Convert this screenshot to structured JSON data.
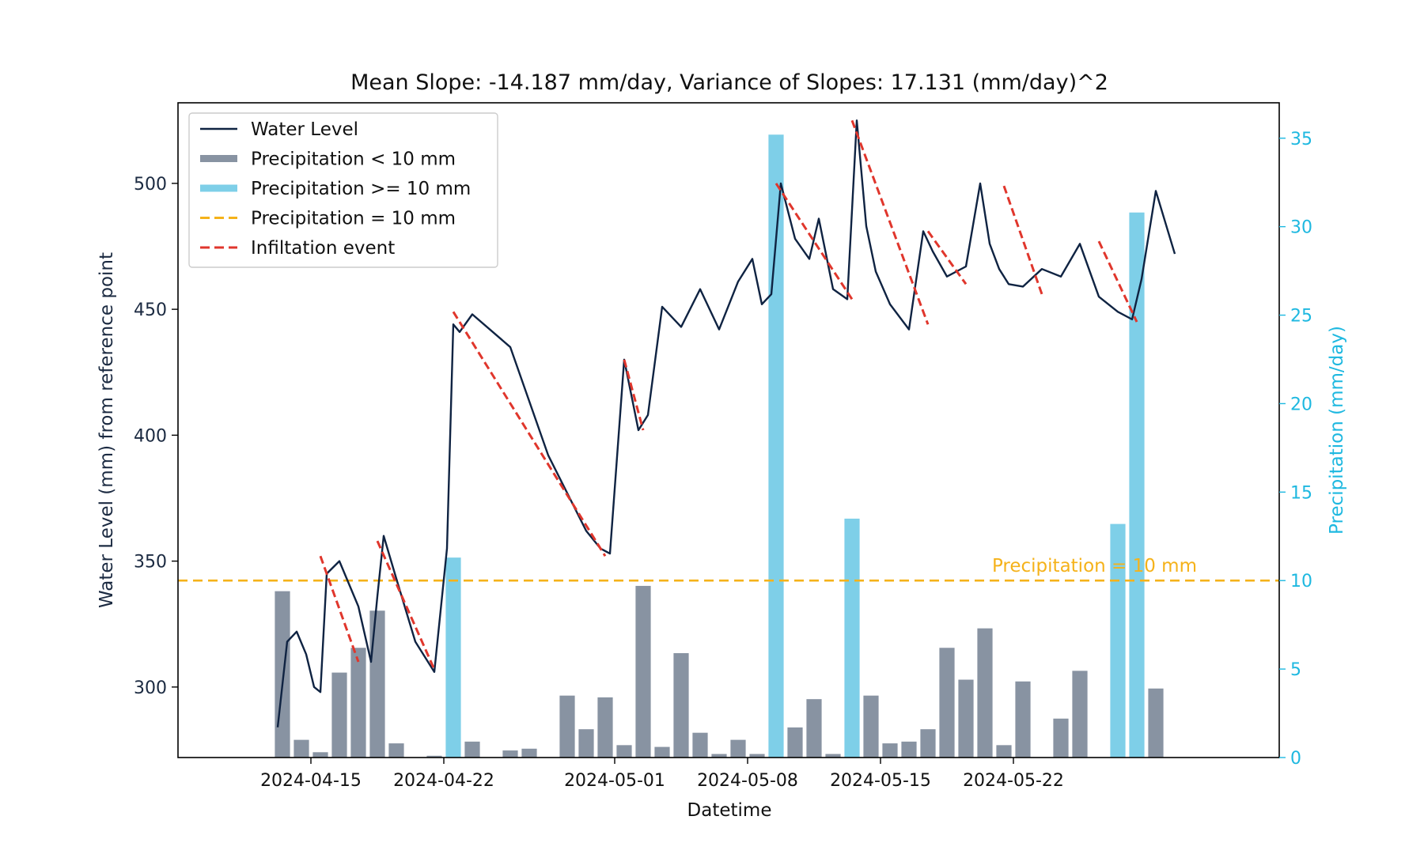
{
  "chart_data": {
    "type": "line",
    "title": "Mean Slope: -14.187 mm/day, Variance of Slopes: 17.131 (mm/day)^2",
    "xlabel": "Datetime",
    "ylabel": "Water Level (mm) from reference point",
    "y2label": "Precipitation (mm/day)",
    "x_range": [
      "2024-04-08",
      "2024-06-05"
    ],
    "ylim": [
      272,
      532
    ],
    "y2lim": [
      0,
      37
    ],
    "x_ticks": [
      "2024-04-15",
      "2024-04-22",
      "2024-05-01",
      "2024-05-08",
      "2024-05-15",
      "2024-05-22"
    ],
    "y_ticks": [
      300,
      350,
      400,
      450,
      500
    ],
    "y2_ticks": [
      0,
      5,
      10,
      15,
      20,
      25,
      30,
      35
    ],
    "grid": false,
    "legend_position": "upper-left",
    "threshold": {
      "value": 10,
      "label": "Precipitation = 10 mm"
    },
    "colors": {
      "water_level": "#0f2342",
      "precip_low": "#8893a2",
      "precip_high": "#7ecfe8",
      "threshold": "#f5b21a",
      "infiltration": "#e0362c",
      "right_axis": "#1eb8e0"
    },
    "legend": [
      {
        "label": "Water Level",
        "style": "line",
        "color": "#0f2342"
      },
      {
        "label": "Precipitation < 10 mm",
        "style": "thick",
        "color": "#8893a2"
      },
      {
        "label": "Precipitation >= 10 mm",
        "style": "thick",
        "color": "#7ecfe8"
      },
      {
        "label": "Precipitation = 10 mm",
        "style": "dashed",
        "color": "#f5b21a"
      },
      {
        "label": "Infiltation event",
        "style": "dashed",
        "color": "#e0362c"
      }
    ],
    "precipitation": {
      "dates": [
        "2024-04-13",
        "2024-04-14",
        "2024-04-15",
        "2024-04-16",
        "2024-04-17",
        "2024-04-18",
        "2024-04-19",
        "2024-04-21",
        "2024-04-22",
        "2024-04-23",
        "2024-04-25",
        "2024-04-26",
        "2024-04-28",
        "2024-04-29",
        "2024-04-30",
        "2024-05-01",
        "2024-05-02",
        "2024-05-03",
        "2024-05-04",
        "2024-05-05",
        "2024-05-06",
        "2024-05-07",
        "2024-05-08",
        "2024-05-09",
        "2024-05-10",
        "2024-05-11",
        "2024-05-12",
        "2024-05-13",
        "2024-05-14",
        "2024-05-15",
        "2024-05-16",
        "2024-05-17",
        "2024-05-18",
        "2024-05-19",
        "2024-05-20",
        "2024-05-21",
        "2024-05-22",
        "2024-05-24",
        "2024-05-25",
        "2024-05-27",
        "2024-05-28",
        "2024-05-29"
      ],
      "values": [
        9.4,
        1.0,
        0.3,
        4.8,
        6.2,
        8.3,
        0.8,
        0.1,
        11.3,
        0.9,
        0.4,
        0.5,
        3.5,
        1.6,
        3.4,
        0.7,
        9.7,
        0.6,
        5.9,
        1.4,
        0.2,
        1.0,
        0.2,
        35.2,
        1.7,
        3.3,
        0.2,
        13.5,
        3.5,
        0.8,
        0.9,
        1.6,
        6.2,
        4.4,
        7.3,
        0.7,
        4.3,
        2.2,
        4.9,
        13.2,
        30.8,
        3.9
      ]
    },
    "water_level": {
      "x": [
        "2024-04-13",
        "2024-04-13",
        "2024-04-14",
        "2024-04-14",
        "2024-04-15",
        "2024-04-15",
        "2024-04-15",
        "2024-04-16",
        "2024-04-17",
        "2024-04-18",
        "2024-04-18",
        "2024-04-18",
        "2024-04-19",
        "2024-04-20",
        "2024-04-21",
        "2024-04-22",
        "2024-04-22",
        "2024-04-22",
        "2024-04-23",
        "2024-04-25",
        "2024-04-27",
        "2024-04-29",
        "2024-04-30",
        "2024-04-30",
        "2024-05-01",
        "2024-05-02",
        "2024-05-02",
        "2024-05-03",
        "2024-05-04",
        "2024-05-05",
        "2024-05-06",
        "2024-05-07",
        "2024-05-08",
        "2024-05-08",
        "2024-05-09",
        "2024-05-09",
        "2024-05-10",
        "2024-05-11",
        "2024-05-11",
        "2024-05-12",
        "2024-05-13",
        "2024-05-13",
        "2024-05-14",
        "2024-05-14",
        "2024-05-15",
        "2024-05-16",
        "2024-05-17",
        "2024-05-17",
        "2024-05-18",
        "2024-05-19",
        "2024-05-20",
        "2024-05-20",
        "2024-05-21",
        "2024-05-21",
        "2024-05-22",
        "2024-05-23",
        "2024-05-24",
        "2024-05-25",
        "2024-05-26",
        "2024-05-27",
        "2024-05-28",
        "2024-05-28",
        "2024-05-29",
        "2024-05-30"
      ],
      "y": [
        284,
        318,
        322,
        313,
        300,
        298,
        345,
        350,
        332,
        310,
        336,
        360,
        343,
        318,
        306,
        355,
        444,
        441,
        448,
        435,
        392,
        362,
        355,
        353,
        430,
        402,
        408,
        451,
        443,
        458,
        442,
        461,
        470,
        452,
        456,
        500,
        478,
        470,
        486,
        458,
        454,
        525,
        483,
        465,
        452,
        442,
        481,
        473,
        463,
        467,
        500,
        476,
        466,
        460,
        459,
        466,
        463,
        476,
        455,
        449,
        446,
        462,
        497,
        472
      ]
    },
    "infiltration_events": [
      {
        "x": [
          "2024-04-15",
          "2024-04-17"
        ],
        "y": [
          352,
          310
        ]
      },
      {
        "x": [
          "2024-04-18",
          "2024-04-21"
        ],
        "y": [
          358,
          307
        ]
      },
      {
        "x": [
          "2024-04-22",
          "2024-04-30"
        ],
        "y": [
          449,
          352
        ]
      },
      {
        "x": [
          "2024-05-01",
          "2024-05-02"
        ],
        "y": [
          430,
          402
        ]
      },
      {
        "x": [
          "2024-05-09",
          "2024-05-13"
        ],
        "y": [
          500,
          454
        ]
      },
      {
        "x": [
          "2024-05-13",
          "2024-05-17"
        ],
        "y": [
          525,
          444
        ]
      },
      {
        "x": [
          "2024-05-17",
          "2024-05-19"
        ],
        "y": [
          481,
          460
        ]
      },
      {
        "x": [
          "2024-05-21",
          "2024-05-23"
        ],
        "y": [
          499,
          456
        ]
      },
      {
        "x": [
          "2024-05-26",
          "2024-05-28"
        ],
        "y": [
          477,
          445
        ]
      }
    ]
  }
}
